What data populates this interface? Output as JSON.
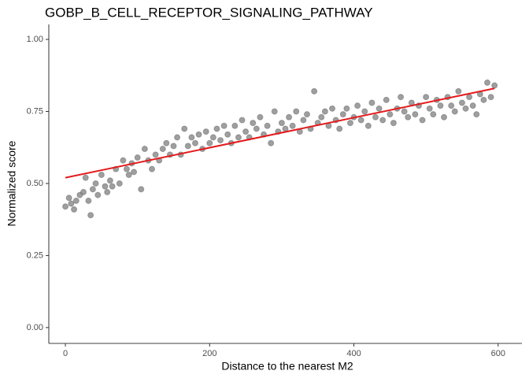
{
  "chart_data": {
    "type": "scatter",
    "title": "GOBP_B_CELL_RECEPTOR_SIGNALING_PATHWAY",
    "x_label": "Distance to the nearest M2",
    "y_label": "Normalized score",
    "color": "#7f7f7f",
    "x": [
      0,
      5,
      8,
      12,
      15,
      20,
      25,
      28,
      32,
      35,
      38,
      42,
      45,
      50,
      55,
      58,
      62,
      65,
      70,
      75,
      80,
      85,
      88,
      92,
      95,
      100,
      105,
      110,
      115,
      120,
      125,
      130,
      135,
      140,
      145,
      150,
      155,
      160,
      165,
      170,
      175,
      180,
      185,
      190,
      195,
      200,
      205,
      210,
      215,
      220,
      225,
      230,
      235,
      240,
      245,
      250,
      255,
      260,
      265,
      270,
      275,
      280,
      285,
      290,
      295,
      300,
      305,
      310,
      315,
      320,
      325,
      330,
      335,
      340,
      345,
      350,
      355,
      360,
      365,
      370,
      375,
      380,
      385,
      390,
      395,
      400,
      405,
      410,
      415,
      420,
      425,
      430,
      435,
      440,
      445,
      450,
      455,
      460,
      465,
      470,
      475,
      480,
      485,
      490,
      495,
      500,
      505,
      510,
      515,
      520,
      525,
      530,
      535,
      540,
      545,
      550,
      555,
      560,
      565,
      570,
      575,
      580,
      585,
      590,
      595
    ],
    "values": [
      0.42,
      0.45,
      0.43,
      0.41,
      0.44,
      0.46,
      0.47,
      0.52,
      0.44,
      0.39,
      0.48,
      0.5,
      0.46,
      0.53,
      0.49,
      0.47,
      0.51,
      0.49,
      0.55,
      0.5,
      0.58,
      0.55,
      0.53,
      0.57,
      0.54,
      0.59,
      0.48,
      0.62,
      0.58,
      0.55,
      0.6,
      0.58,
      0.62,
      0.64,
      0.6,
      0.63,
      0.66,
      0.6,
      0.69,
      0.63,
      0.66,
      0.64,
      0.67,
      0.62,
      0.68,
      0.64,
      0.66,
      0.69,
      0.65,
      0.7,
      0.67,
      0.64,
      0.7,
      0.66,
      0.72,
      0.68,
      0.66,
      0.71,
      0.69,
      0.73,
      0.67,
      0.7,
      0.64,
      0.75,
      0.68,
      0.71,
      0.69,
      0.73,
      0.7,
      0.75,
      0.68,
      0.72,
      0.74,
      0.69,
      0.82,
      0.71,
      0.73,
      0.75,
      0.7,
      0.76,
      0.72,
      0.69,
      0.74,
      0.76,
      0.71,
      0.73,
      0.77,
      0.72,
      0.75,
      0.7,
      0.78,
      0.73,
      0.76,
      0.72,
      0.79,
      0.74,
      0.71,
      0.76,
      0.8,
      0.75,
      0.73,
      0.78,
      0.74,
      0.77,
      0.72,
      0.8,
      0.76,
      0.74,
      0.79,
      0.77,
      0.73,
      0.8,
      0.77,
      0.75,
      0.82,
      0.78,
      0.76,
      0.8,
      0.77,
      0.74,
      0.81,
      0.79,
      0.85,
      0.8,
      0.84
    ],
    "trend_line": {
      "x": [
        0,
        595
      ],
      "y": [
        0.52,
        0.83
      ],
      "color": "#e41a1c"
    },
    "xlim": [
      -23,
      633
    ],
    "ylim": [
      -0.055,
      1.052
    ],
    "xticks": [
      0,
      200,
      400,
      600
    ],
    "yticks": [
      {
        "value": 0,
        "label": "0.00"
      },
      {
        "value": 0.25,
        "label": "0.25"
      },
      {
        "value": 0.5,
        "label": "0.50"
      },
      {
        "value": 0.75,
        "label": "0.75"
      },
      {
        "value": 1,
        "label": "1.00"
      }
    ]
  }
}
